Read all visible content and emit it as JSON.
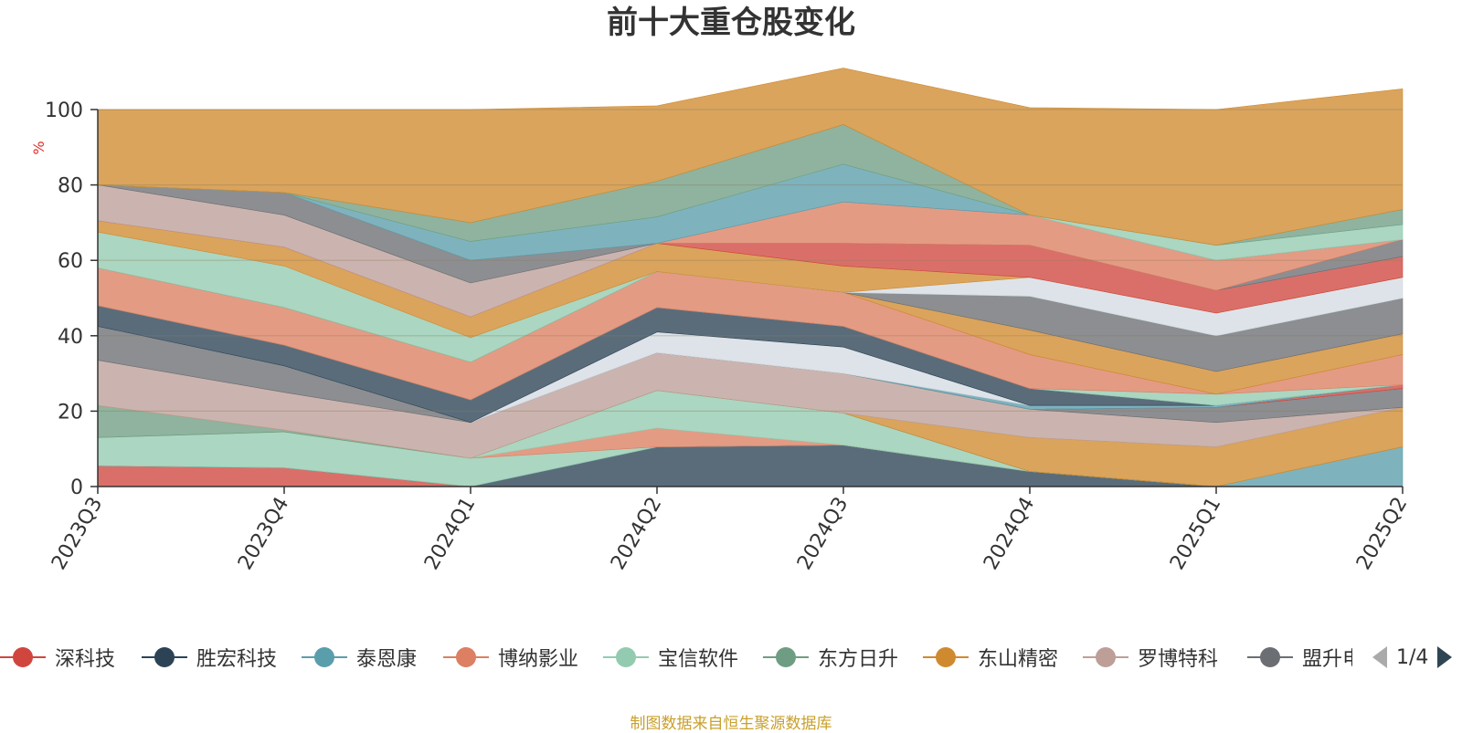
{
  "title": "前十大重仓股变化",
  "source": "制图数据来自恒生聚源数据库",
  "legend_pager": {
    "page_text": "1/4"
  },
  "legend": [
    {
      "name": "深科技",
      "color": "#d0463f"
    },
    {
      "name": "胜宏科技",
      "color": "#2c4355"
    },
    {
      "name": "泰恩康",
      "color": "#5a9eac"
    },
    {
      "name": "博纳影业",
      "color": "#dc7f62"
    },
    {
      "name": "宝信软件",
      "color": "#93cbb0"
    },
    {
      "name": "东方日升",
      "color": "#6f9d83"
    },
    {
      "name": "东山精密",
      "color": "#cf8a30"
    },
    {
      "name": "罗博特科",
      "color": "#bd9f98"
    },
    {
      "name": "盟升电子",
      "color": "#6b6e73"
    }
  ],
  "chart_data": {
    "type": "area",
    "title": "前十大重仓股变化",
    "ylabel": "%",
    "ylim": [
      0,
      100
    ],
    "yticks": [
      0,
      20,
      40,
      60,
      80,
      100
    ],
    "grid": true,
    "stacked": true,
    "categories": [
      "2023Q3",
      "2023Q4",
      "2024Q1",
      "2024Q2",
      "2024Q3",
      "2024Q4",
      "2025Q1",
      "2025Q2"
    ],
    "bands": [
      {
        "color": "#d0463f",
        "values": [
          5.5,
          5,
          0,
          0,
          0,
          0,
          0,
          0
        ]
      },
      {
        "color": "#2c4355",
        "values": [
          0,
          0,
          0,
          10.5,
          11,
          4,
          0,
          0
        ]
      },
      {
        "color": "#5a9eac",
        "values": [
          0,
          0,
          0,
          0,
          0,
          0,
          0,
          10.5
        ]
      },
      {
        "color": "#93cbb0",
        "values": [
          7.5,
          9.5,
          7.5,
          0,
          0,
          0,
          0,
          0
        ]
      },
      {
        "color": "#dc7f62",
        "values": [
          0,
          0,
          0,
          5,
          0,
          0,
          0,
          0
        ]
      },
      {
        "color": "#93cbb0",
        "values": [
          0,
          0,
          0,
          10,
          8.5,
          0,
          0,
          0
        ]
      },
      {
        "color": "#6f9d83",
        "values": [
          8.5,
          0.5,
          0,
          0,
          0,
          0,
          0,
          0
        ]
      },
      {
        "color": "#cf8a30",
        "values": [
          0,
          0,
          0,
          0,
          0,
          9,
          10.5,
          10.5
        ]
      },
      {
        "color": "#bd9f98",
        "values": [
          12,
          10,
          9.5,
          10,
          10.5,
          7.5,
          6.5,
          0
        ]
      },
      {
        "color": "#6b6e73",
        "values": [
          9,
          7,
          0,
          0,
          0,
          0,
          4,
          5
        ]
      },
      {
        "color": "#d0463f",
        "values": [
          0,
          0,
          0,
          0,
          0,
          0,
          0,
          1
        ]
      },
      {
        "color": "#5a9eac",
        "values": [
          0,
          0,
          0,
          0,
          0,
          1,
          0.5,
          0
        ]
      },
      {
        "color": "#d5dbe3",
        "values": [
          0,
          0,
          0,
          5.5,
          7,
          0,
          0,
          0
        ]
      },
      {
        "color": "#2c4355",
        "values": [
          5.5,
          5.5,
          6,
          6.5,
          5.5,
          4.5,
          0,
          0
        ]
      },
      {
        "color": "#93cbb0",
        "values": [
          0,
          0,
          0,
          0,
          0,
          0,
          3,
          0
        ]
      },
      {
        "color": "#dc7f62",
        "values": [
          10,
          10,
          10,
          9.5,
          9,
          9,
          0,
          8
        ]
      },
      {
        "color": "#cf8a30",
        "values": [
          0,
          0,
          0,
          0,
          0,
          6.5,
          6,
          5.5
        ]
      },
      {
        "color": "#6b6e73",
        "values": [
          0,
          0,
          0,
          0,
          0,
          9,
          9.5,
          9.5
        ]
      },
      {
        "color": "#93cbb0",
        "values": [
          9.5,
          11,
          6.5,
          0,
          0,
          0,
          0,
          0
        ]
      },
      {
        "color": "#d5dbe3",
        "values": [
          0,
          0,
          0,
          0,
          0,
          5,
          6,
          5.5
        ]
      },
      {
        "color": "#cf8a30",
        "values": [
          3,
          5,
          5.5,
          7.5,
          7,
          0,
          0,
          0
        ]
      },
      {
        "color": "#d0463f",
        "values": [
          0,
          0,
          0,
          0,
          6,
          8.5,
          6,
          5.5
        ]
      },
      {
        "color": "#bd9f98",
        "values": [
          9.5,
          8.5,
          9,
          0,
          0,
          0,
          0,
          0
        ]
      },
      {
        "color": "#6b6e73",
        "values": [
          0,
          6,
          6,
          0,
          0,
          0,
          0,
          4.5
        ]
      },
      {
        "color": "#dc7f62",
        "values": [
          0,
          0,
          0,
          0,
          11,
          8,
          8,
          0
        ]
      },
      {
        "color": "#5a9eac",
        "values": [
          0,
          0,
          5,
          7,
          10,
          0,
          0,
          0
        ]
      },
      {
        "color": "#93cbb0",
        "values": [
          0,
          0,
          0,
          0,
          0,
          0,
          4,
          4
        ]
      },
      {
        "color": "#6f9d83",
        "values": [
          0,
          0,
          5,
          9.5,
          10.5,
          0,
          0,
          4
        ]
      },
      {
        "color": "#cf8a30",
        "values": [
          20,
          22,
          30,
          20,
          15,
          28.5,
          36,
          32
        ]
      }
    ]
  }
}
